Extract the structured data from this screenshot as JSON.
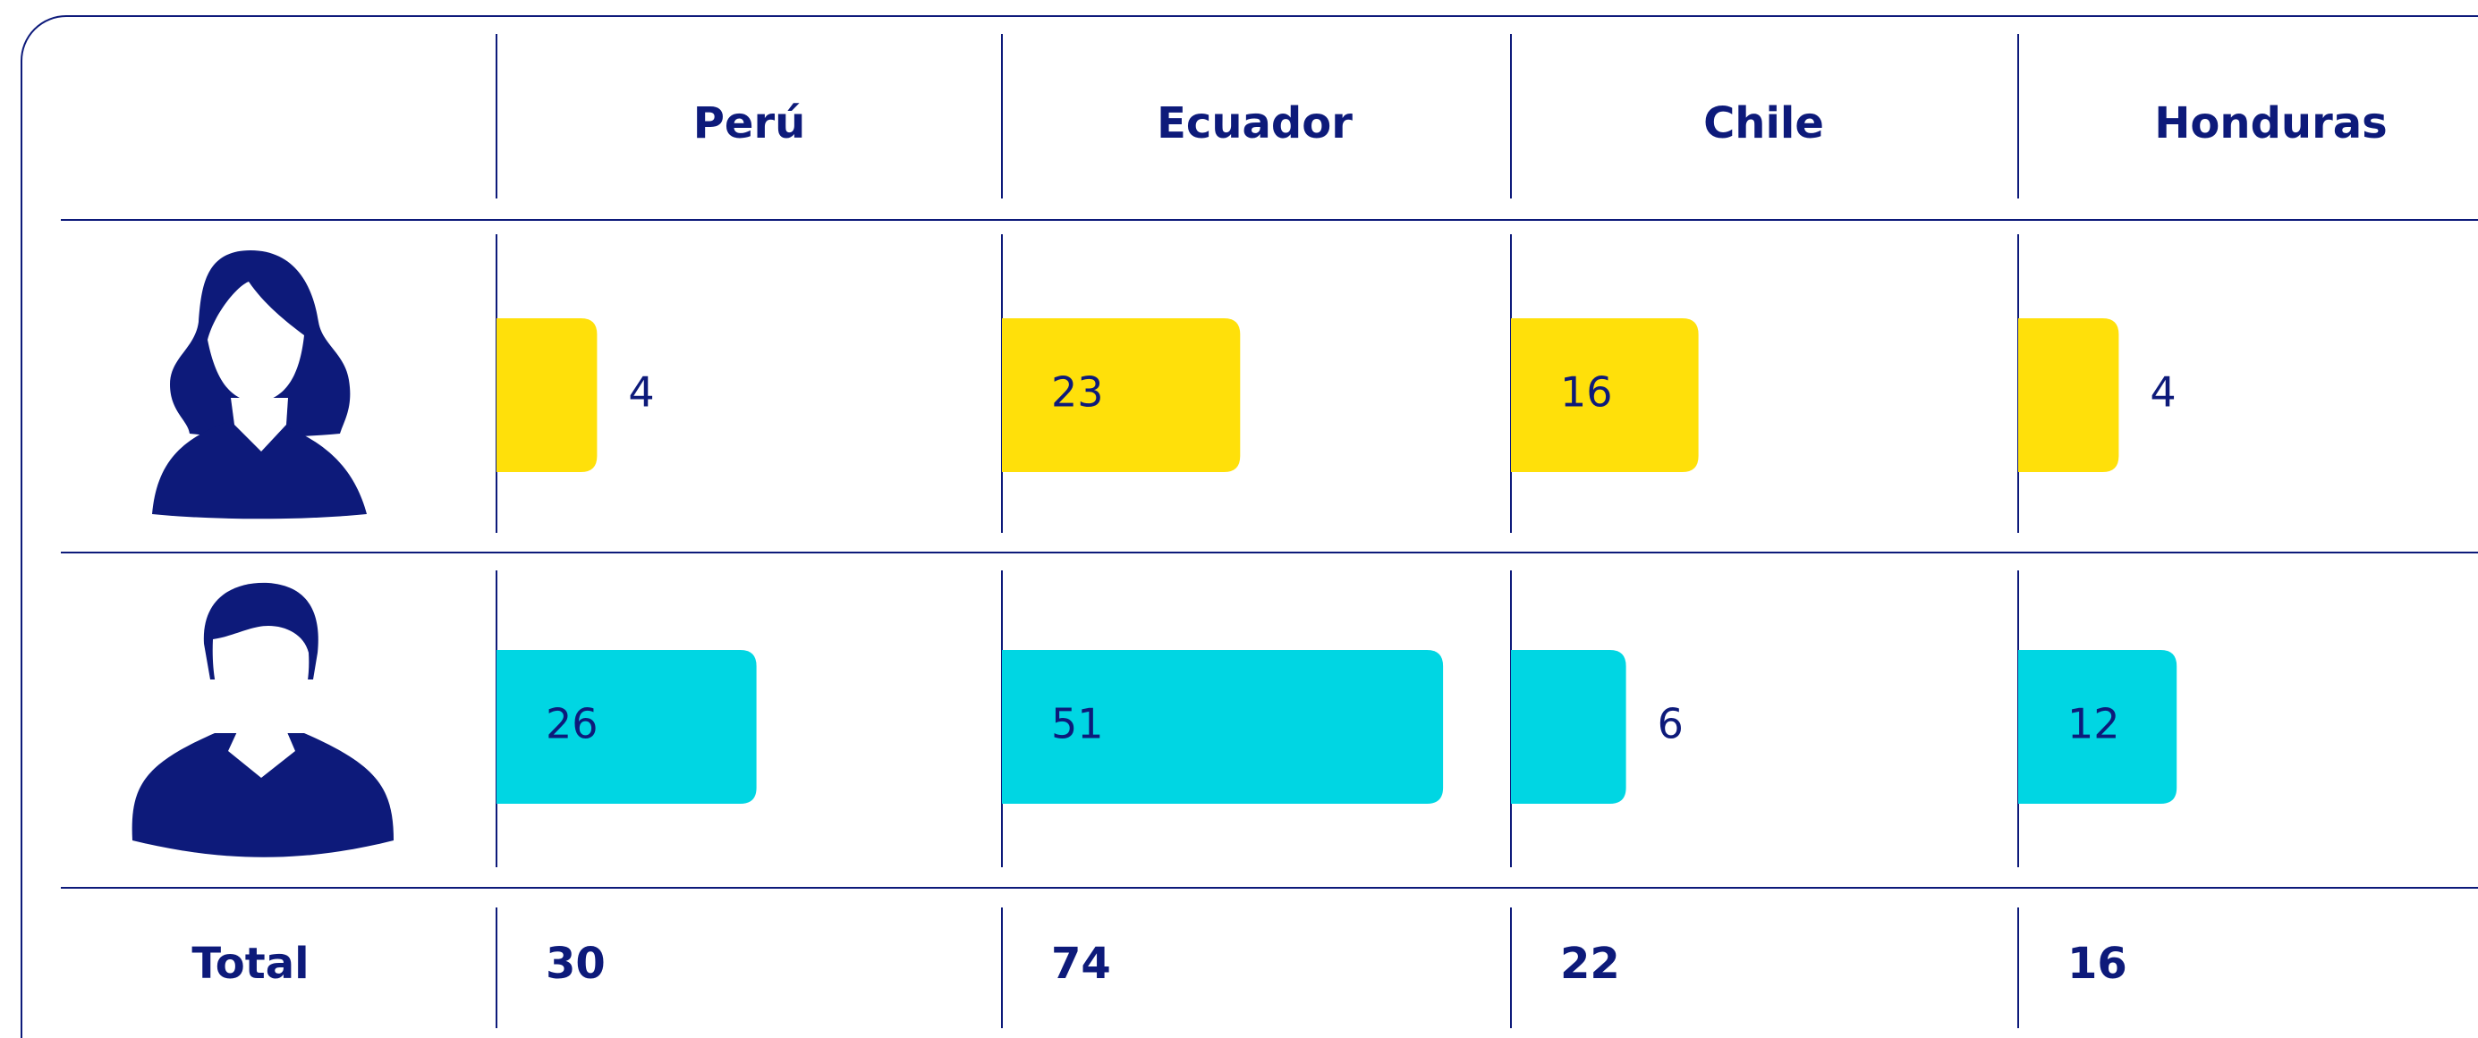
{
  "table": {
    "columns": [
      "Perú",
      "Ecuador",
      "Chile",
      "Honduras"
    ],
    "rows": [
      {
        "color": "#ffe00a",
        "values": [
          4,
          23,
          16,
          4
        ]
      },
      {
        "color": "#00d6e3",
        "values": [
          26,
          51,
          6,
          12
        ]
      }
    ],
    "total_label": "Total",
    "totals": [
      30,
      74,
      22,
      16
    ]
  }
}
